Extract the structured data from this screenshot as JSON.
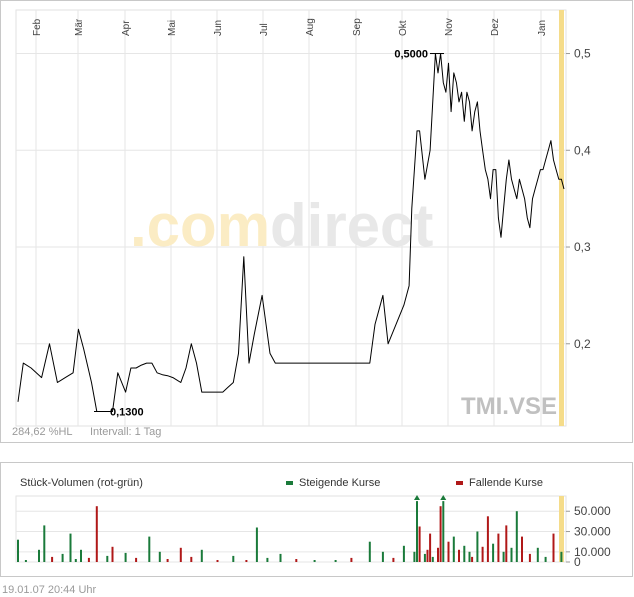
{
  "watermark": {
    "left": ".com",
    "right": "direct"
  },
  "symbol": "TMI.VSE",
  "footer_left": "284,62 %HL",
  "footer_right": "Intervall: 1 Tag",
  "timestamp": "19.01.07    20:44 Uhr",
  "volume_title": "Stück-Volumen (rot-grün)",
  "legend": {
    "rising": "Steigende Kurse",
    "falling": "Fallende Kurse"
  },
  "colors": {
    "rising": "#1a7a3a",
    "falling": "#b01818",
    "line": "#000000",
    "highlight": "#f5dc8a"
  },
  "chart_data": [
    {
      "type": "line",
      "months": [
        "Feb",
        "Mär",
        "Apr",
        "Mai",
        "Jun",
        "Jul",
        "Aug",
        "Sep",
        "Okt",
        "Nov",
        "Dez",
        "Jan"
      ],
      "yticks": [
        "0,5",
        "0,4",
        "0,3",
        "0,2"
      ],
      "ytick_values": [
        0.5,
        0.4,
        0.3,
        0.2
      ],
      "ylim": [
        0.115,
        0.545
      ],
      "annotations": [
        {
          "text": "0,5000",
          "value": 0.5
        },
        {
          "text": "0,1300",
          "value": 0.13
        }
      ],
      "x": [
        0,
        2,
        5,
        9,
        12,
        15,
        18,
        21,
        23,
        25,
        28,
        30,
        32,
        34,
        36,
        38,
        41,
        43,
        45,
        47,
        49,
        51,
        53,
        55,
        57,
        59,
        62,
        64,
        66,
        68,
        70,
        72,
        75,
        78,
        80,
        82,
        84,
        86,
        88,
        90,
        93,
        96,
        98,
        100,
        102,
        104,
        106,
        108,
        110,
        112,
        114,
        116,
        118,
        120,
        122,
        124,
        126,
        128,
        130,
        132,
        134,
        136,
        139,
        141,
        144,
        147,
        149,
        150,
        151,
        152,
        153,
        155,
        157,
        159,
        160,
        161,
        162,
        163,
        164,
        165,
        166,
        167,
        168,
        169,
        170,
        171,
        172,
        173,
        174,
        175,
        176,
        177,
        178,
        179,
        180,
        181,
        182,
        183,
        184,
        185,
        186,
        187,
        188,
        189,
        190,
        191,
        192,
        193,
        194,
        195,
        196,
        197,
        198,
        199,
        200,
        201,
        202,
        203,
        204,
        205,
        206,
        207,
        208
      ],
      "values": [
        0.14,
        0.18,
        0.175,
        0.165,
        0.2,
        0.16,
        0.165,
        0.17,
        0.215,
        0.195,
        0.16,
        0.13,
        0.13,
        0.13,
        0.13,
        0.17,
        0.15,
        0.175,
        0.175,
        0.178,
        0.18,
        0.18,
        0.17,
        0.168,
        0.167,
        0.165,
        0.16,
        0.175,
        0.2,
        0.18,
        0.15,
        0.15,
        0.15,
        0.15,
        0.155,
        0.16,
        0.19,
        0.29,
        0.18,
        0.21,
        0.25,
        0.19,
        0.18,
        0.18,
        0.18,
        0.18,
        0.18,
        0.18,
        0.18,
        0.18,
        0.18,
        0.18,
        0.18,
        0.18,
        0.18,
        0.18,
        0.18,
        0.18,
        0.18,
        0.18,
        0.18,
        0.22,
        0.25,
        0.2,
        0.22,
        0.24,
        0.26,
        0.34,
        0.38,
        0.42,
        0.42,
        0.37,
        0.4,
        0.5,
        0.48,
        0.5,
        0.47,
        0.46,
        0.49,
        0.44,
        0.48,
        0.47,
        0.45,
        0.46,
        0.43,
        0.46,
        0.45,
        0.42,
        0.44,
        0.45,
        0.42,
        0.4,
        0.38,
        0.37,
        0.35,
        0.38,
        0.38,
        0.33,
        0.31,
        0.34,
        0.37,
        0.39,
        0.37,
        0.36,
        0.35,
        0.37,
        0.36,
        0.35,
        0.33,
        0.32,
        0.35,
        0.36,
        0.37,
        0.38,
        0.38,
        0.39,
        0.4,
        0.41,
        0.39,
        0.38,
        0.37,
        0.37,
        0.36
      ]
    },
    {
      "type": "bar",
      "title": "Stück-Volumen (rot-grün)",
      "yticks": [
        "50.000",
        "30.000",
        "10.000",
        "0"
      ],
      "ytick_values": [
        50000,
        30000,
        10000,
        0
      ],
      "ylim": [
        0,
        65000
      ],
      "x": [
        0,
        3,
        8,
        10,
        13,
        17,
        20,
        22,
        24,
        27,
        30,
        34,
        36,
        41,
        45,
        50,
        54,
        57,
        62,
        66,
        70,
        76,
        82,
        87,
        91,
        95,
        100,
        106,
        113,
        121,
        127,
        134,
        139,
        143,
        147,
        151,
        152,
        153,
        155,
        156,
        157,
        158,
        160,
        161,
        162,
        164,
        166,
        168,
        170,
        172,
        173,
        175,
        177,
        179,
        181,
        183,
        185,
        186,
        188,
        190,
        192,
        195,
        198,
        201,
        204,
        207
      ],
      "values": [
        22000,
        2000,
        12000,
        36000,
        5000,
        8000,
        28000,
        3000,
        12000,
        4000,
        55000,
        6000,
        15000,
        9000,
        4000,
        25000,
        10000,
        3000,
        14000,
        5000,
        12000,
        2000,
        6000,
        2000,
        34000,
        4000,
        8000,
        3000,
        2000,
        2000,
        4000,
        20000,
        10000,
        4000,
        16000,
        10000,
        60000,
        35000,
        8000,
        12000,
        28000,
        5000,
        14000,
        55000,
        60000,
        20000,
        25000,
        12000,
        16000,
        10000,
        5000,
        30000,
        15000,
        45000,
        18000,
        28000,
        10000,
        36000,
        14000,
        50000,
        25000,
        8000,
        14000,
        5000,
        28000,
        10000
      ],
      "direction": [
        "g",
        "g",
        "g",
        "g",
        "r",
        "g",
        "g",
        "g",
        "g",
        "r",
        "r",
        "g",
        "r",
        "g",
        "r",
        "g",
        "g",
        "r",
        "r",
        "r",
        "g",
        "r",
        "g",
        "r",
        "g",
        "g",
        "g",
        "r",
        "g",
        "g",
        "r",
        "g",
        "g",
        "r",
        "g",
        "g",
        "g",
        "r",
        "g",
        "r",
        "r",
        "g",
        "r",
        "r",
        "g",
        "r",
        "g",
        "r",
        "g",
        "g",
        "r",
        "g",
        "r",
        "r",
        "g",
        "r",
        "g",
        "r",
        "g",
        "g",
        "r",
        "r",
        "g",
        "g",
        "r",
        "g"
      ]
    }
  ]
}
